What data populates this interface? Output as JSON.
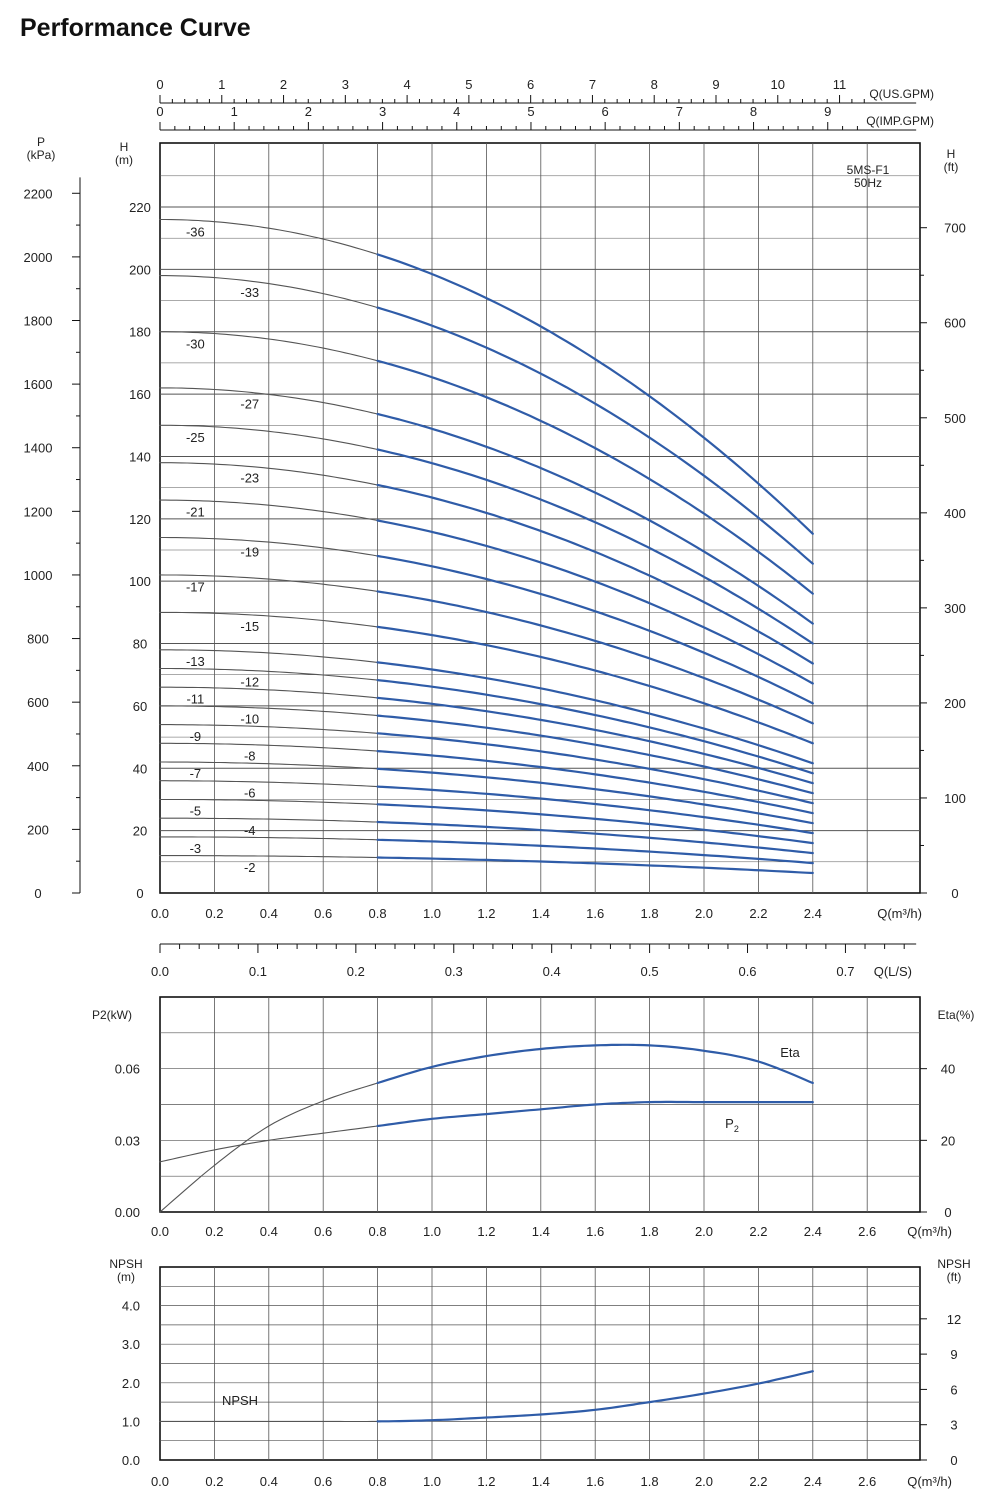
{
  "page_title": "Performance Curve",
  "colors": {
    "operating": "#2f5ca8",
    "extended": "#555555",
    "grid": "#555555",
    "axis": "#111111"
  },
  "chart_data": [
    {
      "id": "head",
      "type": "line",
      "model_label": "5MS-F1\n50Hz",
      "x_unit_label": "Q(m³/h)",
      "x_ticks": [
        "0.0",
        "0.2",
        "0.4",
        "0.6",
        "0.8",
        "1.0",
        "1.2",
        "1.4",
        "1.6",
        "1.8",
        "2.0",
        "2.2",
        "2.4"
      ],
      "xlim": [
        0,
        2.8
      ],
      "left_axis_label": "H\n(m)",
      "ylim": [
        0,
        240
      ],
      "y_ticks": [
        0,
        20,
        40,
        60,
        80,
        100,
        120,
        140,
        160,
        180,
        200,
        220
      ],
      "pressure_axis_label": "P\n(kPa)",
      "pressure_ticks": [
        0,
        200,
        400,
        600,
        800,
        1000,
        1200,
        1400,
        1600,
        1800,
        2000,
        2200
      ],
      "right_axis_label": "H\n(ft)",
      "ft_ticks": [
        0,
        100,
        200,
        300,
        400,
        500,
        600,
        700
      ],
      "top_axes": [
        {
          "label": "Q(US.GPM)",
          "ticks": [
            0,
            1,
            2,
            3,
            4,
            5,
            6,
            7,
            8,
            9,
            10,
            11
          ]
        },
        {
          "label": "Q(IMP.GPM)",
          "ticks": [
            0,
            1,
            2,
            3,
            4,
            5,
            6,
            7,
            8,
            9
          ]
        }
      ],
      "operating_range": [
        0.8,
        2.4
      ],
      "shutoff_head_per_stage": 6.0,
      "end_head_per_stage": 3.2,
      "stages": [
        2,
        3,
        4,
        5,
        6,
        7,
        8,
        9,
        10,
        11,
        12,
        13,
        15,
        17,
        19,
        21,
        23,
        25,
        27,
        30,
        33,
        36
      ],
      "stage_labels": [
        {
          "label": "-2",
          "x": 0.33,
          "stages": 2
        },
        {
          "label": "-3",
          "x": 0.13,
          "stages": 3
        },
        {
          "label": "-4",
          "x": 0.33,
          "stages": 4
        },
        {
          "label": "-5",
          "x": 0.13,
          "stages": 5
        },
        {
          "label": "-6",
          "x": 0.33,
          "stages": 6
        },
        {
          "label": "-7",
          "x": 0.13,
          "stages": 7
        },
        {
          "label": "-8",
          "x": 0.33,
          "stages": 8
        },
        {
          "label": "-9",
          "x": 0.13,
          "stages": 9
        },
        {
          "label": "-10",
          "x": 0.33,
          "stages": 10
        },
        {
          "label": "-11",
          "x": 0.13,
          "stages": 11
        },
        {
          "label": "-12",
          "x": 0.33,
          "stages": 12
        },
        {
          "label": "-13",
          "x": 0.13,
          "stages": 13
        },
        {
          "label": "-15",
          "x": 0.33,
          "stages": 15
        },
        {
          "label": "-17",
          "x": 0.13,
          "stages": 17
        },
        {
          "label": "-19",
          "x": 0.33,
          "stages": 19
        },
        {
          "label": "-21",
          "x": 0.13,
          "stages": 21
        },
        {
          "label": "-23",
          "x": 0.33,
          "stages": 23
        },
        {
          "label": "-25",
          "x": 0.13,
          "stages": 25
        },
        {
          "label": "-27",
          "x": 0.33,
          "stages": 27
        },
        {
          "label": "-30",
          "x": 0.13,
          "stages": 30
        },
        {
          "label": "-33",
          "x": 0.33,
          "stages": 33
        },
        {
          "label": "-36",
          "x": 0.13,
          "stages": 36
        }
      ],
      "grid": true
    },
    {
      "id": "flow_ls_axis",
      "type": "axis",
      "label": "Q(L/S)",
      "ticks": [
        "0.0",
        "0.1",
        "0.2",
        "0.3",
        "0.4",
        "0.5",
        "0.6",
        "0.7"
      ]
    },
    {
      "id": "power_eff",
      "type": "line",
      "x_unit_label": "Q(m³/h)",
      "x_ticks": [
        "0.0",
        "0.2",
        "0.4",
        "0.6",
        "0.8",
        "1.0",
        "1.2",
        "1.4",
        "1.6",
        "1.8",
        "2.0",
        "2.2",
        "2.4",
        "2.6"
      ],
      "xlim": [
        0,
        2.8
      ],
      "left_axis_label": "P2(kW)",
      "left_ylim": [
        0,
        0.09
      ],
      "left_ticks": [
        "0.00",
        "0.03",
        "0.06"
      ],
      "right_axis_label": "Eta(%)",
      "right_ylim": [
        0,
        60
      ],
      "right_ticks": [
        "0",
        "20",
        "40"
      ],
      "series": [
        {
          "name": "Eta",
          "axis": "right",
          "x": [
            0,
            0.2,
            0.4,
            0.6,
            0.8,
            1.0,
            1.2,
            1.4,
            1.6,
            1.8,
            2.0,
            2.2,
            2.4
          ],
          "y": [
            0,
            13,
            24,
            31,
            36,
            40.5,
            43.5,
            45.5,
            46.5,
            46.5,
            45,
            42,
            36
          ]
        },
        {
          "name": "P",
          "name_subscript": "2",
          "axis": "left",
          "x": [
            0,
            0.2,
            0.4,
            0.6,
            0.8,
            1.0,
            1.2,
            1.4,
            1.6,
            1.8,
            2.0,
            2.2,
            2.4
          ],
          "y": [
            0.021,
            0.026,
            0.03,
            0.033,
            0.036,
            0.039,
            0.041,
            0.043,
            0.045,
            0.046,
            0.046,
            0.046,
            0.046
          ]
        }
      ],
      "grid": true
    },
    {
      "id": "npsh",
      "type": "line",
      "x_unit_label": "Q(m³/h)",
      "x_ticks": [
        "0.0",
        "0.2",
        "0.4",
        "0.6",
        "0.8",
        "1.0",
        "1.2",
        "1.4",
        "1.6",
        "1.8",
        "2.0",
        "2.2",
        "2.4",
        "2.6"
      ],
      "xlim": [
        0,
        2.8
      ],
      "left_axis_label": "NPSH\n(m)",
      "ylim": [
        0,
        5
      ],
      "left_ticks": [
        "0.0",
        "1.0",
        "2.0",
        "3.0",
        "4.0"
      ],
      "right_axis_label": "NPSH\n(ft)",
      "right_ticks": [
        "0",
        "3",
        "6",
        "9",
        "12"
      ],
      "series": [
        {
          "name": "NPSH",
          "x": [
            0,
            0.2,
            0.4,
            0.6,
            0.8,
            1.0,
            1.2,
            1.4,
            1.6,
            1.8,
            2.0,
            2.2,
            2.4
          ],
          "y": [
            1.0,
            1.0,
            1.0,
            1.0,
            1.0,
            1.03,
            1.1,
            1.18,
            1.3,
            1.5,
            1.72,
            1.98,
            2.3
          ]
        }
      ],
      "grid": true
    }
  ]
}
